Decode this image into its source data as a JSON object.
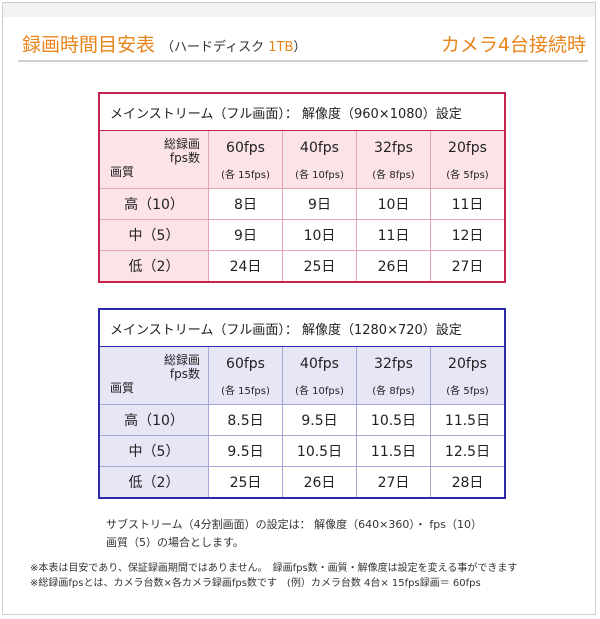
{
  "header": {
    "title": "録画時間目安表",
    "subtitle_prefix": "（ハードディスク",
    "capacity": "1TB",
    "subtitle_suffix": "）",
    "right": "カメラ4台接続時"
  },
  "corner": {
    "line1": "総録画",
    "line2": "fps数",
    "quality": "画質"
  },
  "columns": [
    {
      "fps": "60fps",
      "each": "(各 15fps)"
    },
    {
      "fps": "40fps",
      "each": "(各 10fps)"
    },
    {
      "fps": "32fps",
      "each": "(各 8fps)"
    },
    {
      "fps": "20fps",
      "each": "(各 5fps)"
    }
  ],
  "tables": [
    {
      "caption": "メインストリーム（フル画面）： 解像度（960×1080）設定",
      "rows": [
        {
          "label": "高（10）",
          "values": [
            "8日",
            "9日",
            "10日",
            "11日"
          ]
        },
        {
          "label": "中（5）",
          "values": [
            "9日",
            "10日",
            "11日",
            "12日"
          ]
        },
        {
          "label": "低（2）",
          "values": [
            "24日",
            "25日",
            "26日",
            "27日"
          ]
        }
      ]
    },
    {
      "caption": "メインストリーム（フル画面）： 解像度（1280×720）設定",
      "rows": [
        {
          "label": "高（10）",
          "values": [
            "8.5日",
            "9.5日",
            "10.5日",
            "11.5日"
          ]
        },
        {
          "label": "中（5）",
          "values": [
            "9.5日",
            "10.5日",
            "11.5日",
            "12.5日"
          ]
        },
        {
          "label": "低（2）",
          "values": [
            "25日",
            "26日",
            "27日",
            "28日"
          ]
        }
      ]
    }
  ],
  "sub_note": {
    "line1": "サブストリーム（4分割画面）の設定は： 解像度（640×360）・ fps（10）",
    "line2": "画質（5）の場合とします。"
  },
  "footnotes": {
    "line1": "※本表は目安であり、保証録画期間ではありません。　録画fps数・画質・解像度は設定を変える事ができます",
    "line2": "※総録画fpsとは、カメラ台数×各カメラ録画fps数です　(例）カメラ台数 4台× 15fps録画＝ 60fps"
  },
  "colors": {
    "accent": "#e8841a",
    "table1_border": "#c8234e",
    "table2_border": "#2a2aa8"
  }
}
